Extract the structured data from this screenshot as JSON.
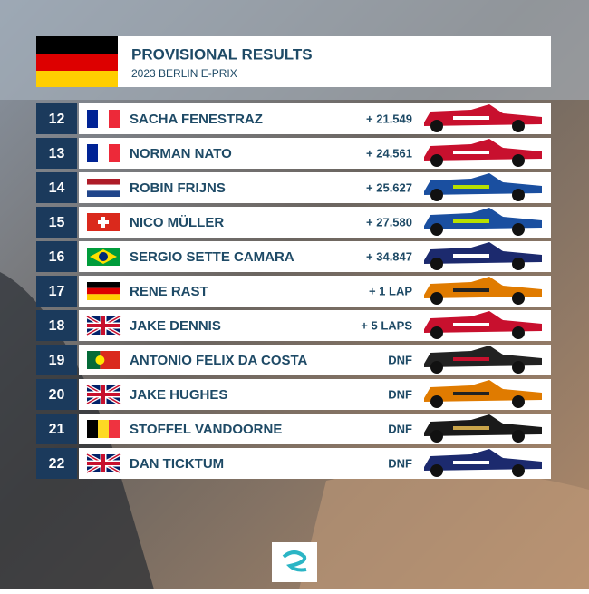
{
  "header": {
    "title": "PROVISIONAL RESULTS",
    "subtitle": "2023 BERLIN E-PRIX"
  },
  "rows": [
    {
      "position": 12,
      "driver": "SACHA FENESTRAZ",
      "gap": "+ 21.549"
    },
    {
      "position": 13,
      "driver": "NORMAN NATO",
      "gap": "+ 24.561"
    },
    {
      "position": 14,
      "driver": "ROBIN FRIJNS",
      "gap": "+ 25.627"
    },
    {
      "position": 15,
      "driver": "NICO MÜLLER",
      "gap": "+ 27.580"
    },
    {
      "position": 16,
      "driver": "SERGIO SETTE CAMARA",
      "gap": "+ 34.847"
    },
    {
      "position": 17,
      "driver": "RENE RAST",
      "gap": "+ 1 LAP"
    },
    {
      "position": 18,
      "driver": "JAKE DENNIS",
      "gap": "+ 5 LAPS"
    },
    {
      "position": 19,
      "driver": "ANTONIO FELIX DA COSTA",
      "gap": "DNF"
    },
    {
      "position": 20,
      "driver": "JAKE HUGHES",
      "gap": "DNF"
    },
    {
      "position": 21,
      "driver": "STOFFEL VANDOORNE",
      "gap": "DNF"
    },
    {
      "position": 22,
      "driver": "DAN TICKTUM",
      "gap": "DNF"
    }
  ]
}
